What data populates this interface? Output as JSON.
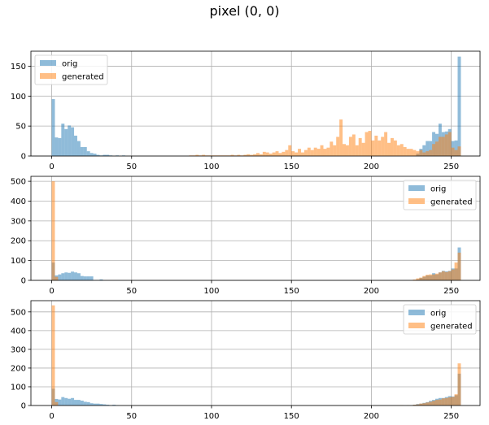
{
  "figure": {
    "title": "pixel (0, 0)"
  },
  "colors": {
    "orig": "#1f77b4",
    "generated": "#ff7f0e",
    "grid": "#b0b0b0",
    "alpha": 0.5
  },
  "chart_data": [
    {
      "type": "bar",
      "title": "",
      "xlim": [
        -13,
        268
      ],
      "ylim": [
        0,
        175
      ],
      "xticks": [
        0,
        50,
        100,
        150,
        200,
        250
      ],
      "yticks": [
        0,
        50,
        100,
        150
      ],
      "grid": true,
      "legend": {
        "position": "upper left",
        "entries": [
          "orig",
          "generated"
        ]
      },
      "bin_width": 2,
      "series": [
        {
          "name": "orig",
          "bins": [
            [
              0,
              95
            ],
            [
              2,
              31
            ],
            [
              4,
              30
            ],
            [
              6,
              54
            ],
            [
              8,
              45
            ],
            [
              10,
              51
            ],
            [
              12,
              48
            ],
            [
              14,
              34
            ],
            [
              16,
              25
            ],
            [
              18,
              15
            ],
            [
              20,
              15
            ],
            [
              22,
              8
            ],
            [
              24,
              5
            ],
            [
              26,
              4
            ],
            [
              28,
              2
            ],
            [
              30,
              1
            ],
            [
              32,
              2
            ],
            [
              34,
              2
            ],
            [
              36,
              1
            ],
            [
              38,
              0
            ],
            [
              40,
              1
            ],
            [
              42,
              0
            ],
            [
              44,
              1
            ],
            [
              228,
              4
            ],
            [
              230,
              12
            ],
            [
              232,
              18
            ],
            [
              234,
              25
            ],
            [
              236,
              25
            ],
            [
              238,
              40
            ],
            [
              240,
              37
            ],
            [
              242,
              54
            ],
            [
              244,
              40
            ],
            [
              246,
              41
            ],
            [
              248,
              45
            ],
            [
              250,
              25
            ],
            [
              252,
              26
            ],
            [
              254,
              166
            ]
          ]
        },
        {
          "name": "generated",
          "bins": [
            [
              86,
              1
            ],
            [
              88,
              1
            ],
            [
              90,
              2
            ],
            [
              92,
              1
            ],
            [
              94,
              2
            ],
            [
              96,
              1
            ],
            [
              98,
              1
            ],
            [
              100,
              1
            ],
            [
              102,
              1
            ],
            [
              104,
              1
            ],
            [
              106,
              1
            ],
            [
              108,
              1
            ],
            [
              110,
              1
            ],
            [
              112,
              2
            ],
            [
              114,
              1
            ],
            [
              116,
              2
            ],
            [
              118,
              1
            ],
            [
              120,
              2
            ],
            [
              122,
              3
            ],
            [
              124,
              2
            ],
            [
              126,
              3
            ],
            [
              128,
              5
            ],
            [
              130,
              3
            ],
            [
              132,
              7
            ],
            [
              134,
              6
            ],
            [
              136,
              4
            ],
            [
              138,
              6
            ],
            [
              140,
              8
            ],
            [
              142,
              5
            ],
            [
              144,
              7
            ],
            [
              146,
              10
            ],
            [
              148,
              18
            ],
            [
              150,
              8
            ],
            [
              152,
              6
            ],
            [
              154,
              12
            ],
            [
              156,
              6
            ],
            [
              158,
              10
            ],
            [
              160,
              14
            ],
            [
              162,
              10
            ],
            [
              164,
              14
            ],
            [
              166,
              12
            ],
            [
              168,
              18
            ],
            [
              170,
              12
            ],
            [
              172,
              14
            ],
            [
              174,
              24
            ],
            [
              176,
              18
            ],
            [
              178,
              32
            ],
            [
              180,
              61
            ],
            [
              182,
              20
            ],
            [
              184,
              18
            ],
            [
              186,
              32
            ],
            [
              188,
              36
            ],
            [
              190,
              18
            ],
            [
              192,
              30
            ],
            [
              194,
              22
            ],
            [
              196,
              40
            ],
            [
              198,
              42
            ],
            [
              200,
              26
            ],
            [
              202,
              34
            ],
            [
              204,
              26
            ],
            [
              206,
              32
            ],
            [
              208,
              40
            ],
            [
              210,
              22
            ],
            [
              212,
              30
            ],
            [
              214,
              26
            ],
            [
              216,
              18
            ],
            [
              218,
              20
            ],
            [
              220,
              15
            ],
            [
              222,
              12
            ],
            [
              224,
              12
            ],
            [
              226,
              10
            ],
            [
              228,
              8
            ],
            [
              230,
              10
            ],
            [
              232,
              6
            ],
            [
              234,
              8
            ],
            [
              236,
              10
            ],
            [
              238,
              20
            ],
            [
              240,
              24
            ],
            [
              242,
              32
            ],
            [
              244,
              32
            ],
            [
              246,
              36
            ],
            [
              248,
              40
            ],
            [
              250,
              14
            ],
            [
              252,
              10
            ],
            [
              254,
              16
            ]
          ]
        }
      ]
    },
    {
      "type": "bar",
      "title": "",
      "xlim": [
        -13,
        268
      ],
      "ylim": [
        0,
        525
      ],
      "xticks": [
        0,
        50,
        100,
        150,
        200,
        250
      ],
      "yticks": [
        0,
        100,
        200,
        300,
        400,
        500
      ],
      "grid": true,
      "legend": {
        "position": "upper right",
        "entries": [
          "orig",
          "generated"
        ]
      },
      "bin_width": 2,
      "series": [
        {
          "name": "orig",
          "bins": [
            [
              0,
              90
            ],
            [
              2,
              25
            ],
            [
              4,
              30
            ],
            [
              6,
              36
            ],
            [
              8,
              40
            ],
            [
              10,
              38
            ],
            [
              12,
              44
            ],
            [
              14,
              40
            ],
            [
              16,
              36
            ],
            [
              18,
              22
            ],
            [
              20,
              20
            ],
            [
              22,
              20
            ],
            [
              24,
              20
            ],
            [
              26,
              2
            ],
            [
              28,
              2
            ],
            [
              30,
              5
            ],
            [
              228,
              4
            ],
            [
              230,
              12
            ],
            [
              232,
              18
            ],
            [
              234,
              25
            ],
            [
              236,
              25
            ],
            [
              238,
              36
            ],
            [
              240,
              30
            ],
            [
              242,
              40
            ],
            [
              244,
              48
            ],
            [
              246,
              45
            ],
            [
              248,
              48
            ],
            [
              250,
              60
            ],
            [
              252,
              60
            ],
            [
              254,
              166
            ]
          ]
        },
        {
          "name": "generated",
          "bins": [
            [
              0,
              500
            ],
            [
              2,
              18
            ],
            [
              226,
              4
            ],
            [
              228,
              10
            ],
            [
              230,
              14
            ],
            [
              232,
              22
            ],
            [
              234,
              28
            ],
            [
              236,
              30
            ],
            [
              238,
              30
            ],
            [
              240,
              34
            ],
            [
              242,
              40
            ],
            [
              244,
              46
            ],
            [
              246,
              42
            ],
            [
              248,
              46
            ],
            [
              250,
              55
            ],
            [
              252,
              90
            ],
            [
              254,
              140
            ]
          ]
        }
      ]
    },
    {
      "type": "bar",
      "title": "",
      "xlim": [
        -13,
        268
      ],
      "ylim": [
        0,
        560
      ],
      "xticks": [
        0,
        50,
        100,
        150,
        200,
        250
      ],
      "yticks": [
        0,
        100,
        200,
        300,
        400,
        500
      ],
      "grid": true,
      "legend": {
        "position": "upper right",
        "entries": [
          "orig",
          "generated"
        ]
      },
      "bin_width": 2,
      "series": [
        {
          "name": "orig",
          "bins": [
            [
              0,
              90
            ],
            [
              2,
              35
            ],
            [
              4,
              32
            ],
            [
              6,
              45
            ],
            [
              8,
              40
            ],
            [
              10,
              36
            ],
            [
              12,
              40
            ],
            [
              14,
              30
            ],
            [
              16,
              30
            ],
            [
              18,
              26
            ],
            [
              20,
              20
            ],
            [
              22,
              18
            ],
            [
              24,
              12
            ],
            [
              26,
              10
            ],
            [
              28,
              10
            ],
            [
              30,
              8
            ],
            [
              32,
              6
            ],
            [
              34,
              4
            ],
            [
              36,
              2
            ],
            [
              38,
              4
            ],
            [
              40,
              2
            ],
            [
              218,
              2
            ],
            [
              222,
              2
            ],
            [
              226,
              4
            ],
            [
              228,
              8
            ],
            [
              230,
              10
            ],
            [
              232,
              14
            ],
            [
              234,
              18
            ],
            [
              236,
              25
            ],
            [
              238,
              30
            ],
            [
              240,
              36
            ],
            [
              242,
              40
            ],
            [
              244,
              40
            ],
            [
              246,
              45
            ],
            [
              248,
              50
            ],
            [
              250,
              48
            ],
            [
              252,
              55
            ],
            [
              254,
              170
            ]
          ]
        },
        {
          "name": "generated",
          "bins": [
            [
              0,
              535
            ],
            [
              2,
              18
            ],
            [
              216,
              1
            ],
            [
              218,
              2
            ],
            [
              222,
              2
            ],
            [
              226,
              4
            ],
            [
              228,
              6
            ],
            [
              230,
              10
            ],
            [
              232,
              12
            ],
            [
              234,
              16
            ],
            [
              236,
              20
            ],
            [
              238,
              25
            ],
            [
              240,
              30
            ],
            [
              242,
              32
            ],
            [
              244,
              38
            ],
            [
              246,
              40
            ],
            [
              248,
              44
            ],
            [
              250,
              46
            ],
            [
              252,
              60
            ],
            [
              254,
              225
            ]
          ]
        }
      ]
    }
  ]
}
